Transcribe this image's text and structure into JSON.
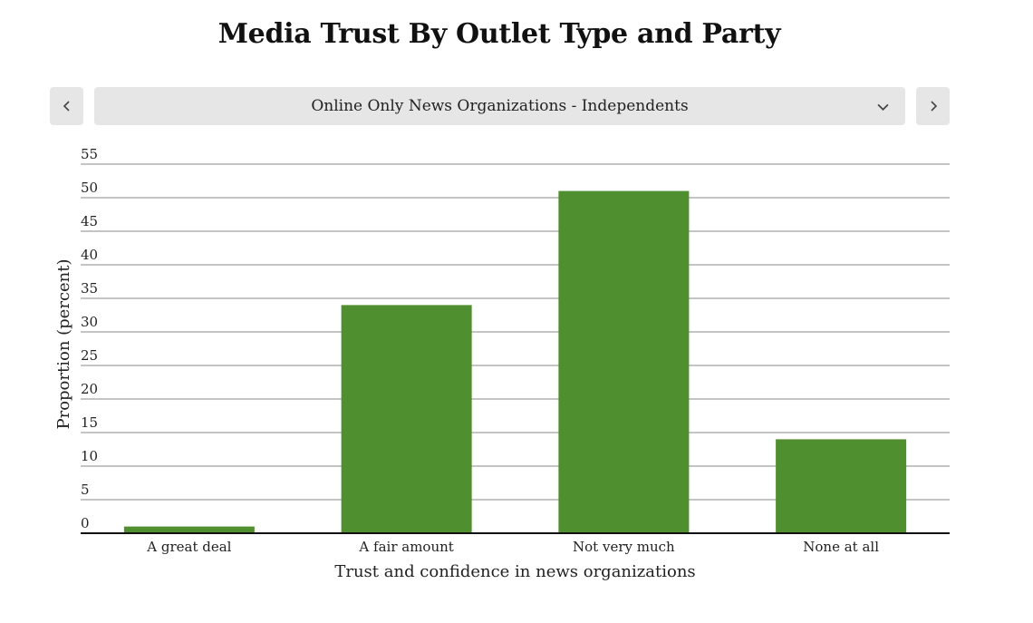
{
  "page": {
    "title": "Media Trust By Outlet Type and Party"
  },
  "controls": {
    "prev_icon": "chevron-left-icon",
    "next_icon": "chevron-right-icon",
    "dropdown_icon": "chevron-down-icon",
    "selected_option": "Online Only News Organizations - Independents"
  },
  "colors": {
    "bar": "#4f8f2f",
    "control_bg": "#e6e6e6"
  },
  "chart_data": {
    "type": "bar",
    "title": "Media Trust By Outlet Type and Party",
    "xlabel": "Trust and confidence in news organizations",
    "ylabel": "Proportion (percent)",
    "categories": [
      "A great deal",
      "A fair amount",
      "Not very much",
      "None at all"
    ],
    "values": [
      1,
      34,
      51,
      14
    ],
    "ylim": [
      0,
      55
    ],
    "yticks": [
      "0",
      "5",
      "10",
      "15",
      "20",
      "25",
      "30",
      "35",
      "40",
      "45",
      "50",
      "55"
    ],
    "grid": true,
    "legend": "none"
  }
}
